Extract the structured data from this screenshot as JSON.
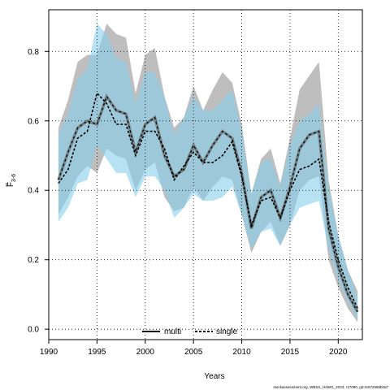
{
  "chart_data": {
    "type": "line",
    "xlabel": "Years",
    "ylabel_main": "F",
    "ylabel_sub": "3-6",
    "xlim": [
      1990,
      2022.5
    ],
    "ylim": [
      -0.03,
      0.92
    ],
    "xticks": [
      "1990",
      "1995",
      "2000",
      "2005",
      "2010",
      "2015",
      "2020"
    ],
    "yticks": [
      "0.0",
      "0.2",
      "0.4",
      "0.6",
      "0.8"
    ],
    "grid": true,
    "legend_position": "bottom-center",
    "footer": "stockassessment.org, WBSS_HAWG_2023, r17090, git:3c872568b0d7",
    "x": [
      1991,
      1992,
      1993,
      1994,
      1995,
      1996,
      1997,
      1998,
      1999,
      2000,
      2001,
      2002,
      2003,
      2004,
      2005,
      2006,
      2007,
      2008,
      2009,
      2010,
      2011,
      2012,
      2013,
      2014,
      2015,
      2016,
      2017,
      2018,
      2019,
      2020,
      2021,
      2022
    ],
    "series": [
      {
        "name": "multi",
        "color": "#000000",
        "ci_color": "#bebebe",
        "values": [
          0.43,
          0.51,
          0.58,
          0.6,
          0.59,
          0.67,
          0.63,
          0.62,
          0.51,
          0.59,
          0.61,
          0.5,
          0.44,
          0.46,
          0.53,
          0.48,
          0.53,
          0.57,
          0.55,
          0.45,
          0.29,
          0.38,
          0.4,
          0.32,
          0.41,
          0.52,
          0.56,
          0.57,
          0.29,
          0.18,
          0.1,
          0.05
        ],
        "lower": [
          0.33,
          0.38,
          0.44,
          0.47,
          0.45,
          0.52,
          0.5,
          0.49,
          0.4,
          0.46,
          0.48,
          0.38,
          0.34,
          0.35,
          0.41,
          0.37,
          0.41,
          0.44,
          0.43,
          0.33,
          0.22,
          0.28,
          0.31,
          0.24,
          0.3,
          0.4,
          0.43,
          0.44,
          0.2,
          0.12,
          0.06,
          0.02
        ],
        "upper": [
          0.58,
          0.66,
          0.77,
          0.79,
          0.79,
          0.88,
          0.85,
          0.84,
          0.68,
          0.79,
          0.81,
          0.67,
          0.58,
          0.61,
          0.7,
          0.63,
          0.69,
          0.74,
          0.71,
          0.59,
          0.39,
          0.49,
          0.52,
          0.42,
          0.55,
          0.69,
          0.73,
          0.77,
          0.43,
          0.27,
          0.17,
          0.11
        ]
      },
      {
        "name": "single",
        "color": "#000000",
        "ci_color": "#87ceeb",
        "values": [
          0.42,
          0.46,
          0.55,
          0.57,
          0.68,
          0.65,
          0.59,
          0.59,
          0.5,
          0.57,
          0.57,
          0.52,
          0.43,
          0.47,
          0.51,
          0.48,
          0.48,
          0.5,
          0.54,
          0.44,
          0.3,
          0.37,
          0.38,
          0.32,
          0.4,
          0.46,
          0.47,
          0.49,
          0.31,
          0.2,
          0.12,
          0.06
        ],
        "lower": [
          0.31,
          0.35,
          0.42,
          0.43,
          0.53,
          0.49,
          0.45,
          0.45,
          0.38,
          0.44,
          0.44,
          0.4,
          0.32,
          0.35,
          0.39,
          0.37,
          0.37,
          0.38,
          0.41,
          0.33,
          0.23,
          0.28,
          0.29,
          0.24,
          0.3,
          0.35,
          0.36,
          0.37,
          0.23,
          0.14,
          0.08,
          0.03
        ],
        "upper": [
          0.56,
          0.62,
          0.72,
          0.75,
          0.88,
          0.85,
          0.78,
          0.77,
          0.65,
          0.74,
          0.74,
          0.67,
          0.56,
          0.61,
          0.67,
          0.63,
          0.63,
          0.66,
          0.69,
          0.57,
          0.39,
          0.48,
          0.49,
          0.41,
          0.53,
          0.6,
          0.62,
          0.65,
          0.41,
          0.27,
          0.17,
          0.09
        ]
      }
    ]
  }
}
